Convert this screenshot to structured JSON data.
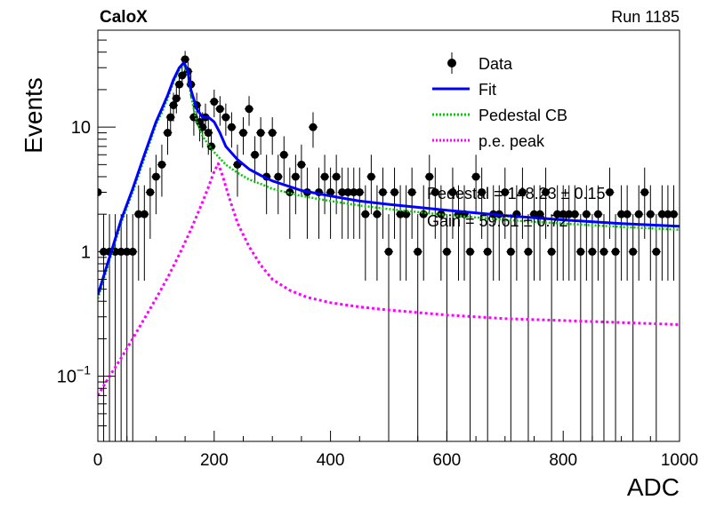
{
  "header": {
    "experiment": "CaloX",
    "run_label": "Run 1185"
  },
  "chart_data": {
    "type": "scatter",
    "xlabel": "ADC",
    "ylabel": "Events",
    "xlim": [
      0,
      1000
    ],
    "ylim": [
      0.03,
      60
    ],
    "y_scale": "log",
    "x_ticks": [
      0,
      200,
      400,
      600,
      800,
      1000
    ],
    "y_tick_labels": [
      {
        "value": 0.1,
        "base": "10",
        "exp": "−1"
      },
      {
        "value": 1,
        "label": "1"
      },
      {
        "value": 10,
        "label": "10"
      }
    ],
    "grid": false,
    "legend_position": "top-right",
    "legend": [
      {
        "key": "data",
        "label": "Data",
        "color": "#000000",
        "style": "marker"
      },
      {
        "key": "fit",
        "label": "Fit",
        "color": "#0000ff",
        "style": "solid"
      },
      {
        "key": "ped",
        "label": "Pedestal CB",
        "color": "#00cc00",
        "style": "dotted"
      },
      {
        "key": "pe",
        "label": "p.e. peak",
        "color": "#ff00ff",
        "style": "dotted"
      }
    ],
    "annotations": [
      "Pedestal = 148.23 ± 0.15",
      "Gain = 59.61 ± 0.72"
    ],
    "series": [
      {
        "name": "Data",
        "x": [
          0,
          10,
          20,
          30,
          40,
          50,
          60,
          70,
          80,
          90,
          100,
          110,
          120,
          125,
          130,
          135,
          140,
          145,
          150,
          155,
          160,
          165,
          170,
          175,
          180,
          185,
          190,
          195,
          200,
          210,
          220,
          230,
          240,
          250,
          260,
          270,
          280,
          290,
          300,
          310,
          320,
          330,
          340,
          350,
          360,
          370,
          380,
          390,
          400,
          410,
          420,
          430,
          440,
          450,
          460,
          470,
          480,
          490,
          500,
          510,
          520,
          530,
          540,
          550,
          560,
          570,
          580,
          590,
          600,
          610,
          620,
          630,
          640,
          650,
          660,
          670,
          680,
          690,
          700,
          710,
          720,
          730,
          740,
          750,
          760,
          770,
          780,
          790,
          800,
          810,
          820,
          830,
          840,
          850,
          860,
          870,
          880,
          890,
          900,
          910,
          920,
          930,
          940,
          950,
          960,
          970,
          980,
          990
        ],
        "y": [
          3,
          1,
          1,
          1,
          1,
          1,
          1,
          2,
          2,
          3,
          4,
          5,
          9,
          12,
          15,
          17,
          22,
          26,
          35,
          28,
          22,
          12,
          15,
          11,
          10,
          12,
          9,
          7,
          16,
          14,
          12,
          10,
          5,
          9,
          14,
          6,
          9,
          4,
          9,
          4,
          6,
          3,
          4,
          5,
          3,
          10,
          3,
          4,
          3,
          4,
          3,
          3,
          3,
          3,
          2,
          4,
          2,
          3,
          1,
          3,
          2,
          2,
          3,
          1,
          2,
          4,
          3,
          2,
          1,
          3,
          2,
          2,
          1,
          4,
          3,
          1,
          2,
          2,
          3,
          1,
          2,
          3,
          1,
          2,
          2,
          3,
          1,
          2,
          2,
          2,
          2,
          1,
          2,
          1,
          2,
          1,
          3,
          1,
          2,
          2,
          1,
          2,
          3,
          2,
          1,
          2,
          2,
          2
        ]
      },
      {
        "name": "Fit",
        "x": [
          0,
          20,
          40,
          60,
          80,
          100,
          110,
          120,
          130,
          140,
          148,
          155,
          160,
          170,
          180,
          190,
          200,
          210,
          220,
          240,
          260,
          280,
          300,
          350,
          400,
          450,
          500,
          600,
          700,
          800,
          900,
          1000
        ],
        "y": [
          0.45,
          0.9,
          1.8,
          3.2,
          6,
          11,
          14,
          18,
          24,
          30,
          33,
          28,
          20,
          14,
          12,
          12,
          11,
          9,
          7,
          5.5,
          4.6,
          4.1,
          3.7,
          3.1,
          2.8,
          2.55,
          2.4,
          2.15,
          1.95,
          1.8,
          1.68,
          1.6
        ]
      },
      {
        "name": "Pedestal CB",
        "x": [
          0,
          20,
          40,
          60,
          80,
          100,
          110,
          120,
          130,
          140,
          148,
          155,
          160,
          170,
          180,
          190,
          200,
          210,
          220,
          240,
          260,
          280,
          300,
          350,
          400,
          450,
          500,
          600,
          700,
          800,
          900,
          1000
        ],
        "y": [
          0.42,
          0.85,
          1.7,
          3,
          5.6,
          10.5,
          13,
          17,
          23,
          29,
          32,
          26,
          18,
          11,
          8.5,
          7.2,
          6.3,
          5.6,
          5,
          4.3,
          3.8,
          3.5,
          3.2,
          2.8,
          2.55,
          2.35,
          2.2,
          1.97,
          1.8,
          1.68,
          1.58,
          1.5
        ]
      },
      {
        "name": "p.e. peak",
        "x": [
          0,
          20,
          40,
          60,
          80,
          100,
          120,
          140,
          160,
          180,
          190,
          200,
          207,
          215,
          225,
          240,
          260,
          280,
          300,
          330,
          360,
          400,
          450,
          500,
          600,
          700,
          800,
          900,
          1000
        ],
        "y": [
          0.07,
          0.1,
          0.14,
          0.2,
          0.29,
          0.42,
          0.62,
          0.95,
          1.5,
          2.5,
          3.3,
          4.4,
          5.1,
          4,
          2.8,
          1.7,
          1.1,
          0.78,
          0.6,
          0.49,
          0.43,
          0.39,
          0.36,
          0.34,
          0.31,
          0.29,
          0.28,
          0.27,
          0.26
        ]
      }
    ]
  }
}
